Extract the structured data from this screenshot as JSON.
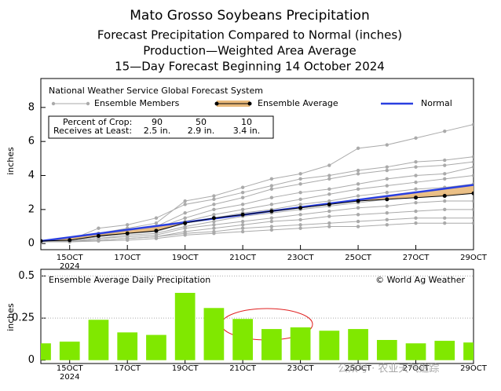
{
  "chart_data": [
    {
      "type": "line",
      "title": "Mato Grosso Soybeans Precipitation",
      "subtitle": [
        "Forecast Precipitation Compared to Normal (inches)",
        "Production—Weighted Area Average",
        "15—Day Forecast Beginning 14 October 2024"
      ],
      "source": "National Weather Service Global Forecast System",
      "ylabel": "inches",
      "x": [
        14,
        15,
        16,
        17,
        18,
        19,
        20,
        21,
        22,
        23,
        24,
        25,
        26,
        27,
        28,
        29
      ],
      "xlim": [
        14,
        29
      ],
      "xticks": [
        {
          "value": 15,
          "label": "15OCT"
        },
        {
          "value": 17,
          "label": "17OCT"
        },
        {
          "value": 19,
          "label": "19OCT"
        },
        {
          "value": 21,
          "label": "21OCT"
        },
        {
          "value": 23,
          "label": "23OCT"
        },
        {
          "value": 25,
          "label": "25OCT"
        },
        {
          "value": 27,
          "label": "27OCT"
        },
        {
          "value": 29,
          "label": "29OCT"
        }
      ],
      "xtick_year": "2024",
      "ylim": [
        -0.36,
        9.7
      ],
      "yticks": [
        0,
        2,
        4,
        6,
        8
      ],
      "series": [
        {
          "name": "Ensemble Members",
          "color": "#aaaaaa",
          "lines": [
            [
              0.1,
              0.25,
              0.6,
              0.9,
              1.2,
              2.5,
              2.8,
              3.3,
              3.8,
              4.1,
              4.6,
              5.6,
              5.8,
              6.2,
              6.6,
              7.0
            ],
            [
              0.1,
              0.2,
              0.9,
              1.1,
              1.5,
              2.3,
              2.6,
              3.0,
              3.4,
              3.8,
              4.0,
              4.3,
              4.5,
              4.8,
              4.9,
              5.1
            ],
            [
              0.1,
              0.2,
              0.5,
              0.8,
              1.0,
              1.8,
              2.3,
              2.7,
              3.2,
              3.5,
              3.8,
              4.1,
              4.3,
              4.5,
              4.6,
              4.8
            ],
            [
              0.1,
              0.2,
              0.5,
              0.7,
              0.9,
              1.5,
              2.0,
              2.3,
              2.7,
              3.0,
              3.2,
              3.5,
              3.8,
              4.0,
              4.1,
              4.5
            ],
            [
              0.1,
              0.2,
              0.4,
              0.6,
              0.8,
              1.3,
              1.7,
              2.0,
              2.3,
              2.6,
              2.9,
              3.2,
              3.4,
              3.6,
              3.8,
              4.0
            ],
            [
              0.1,
              0.2,
              0.4,
              0.6,
              0.7,
              1.2,
              1.5,
              1.8,
              2.0,
              2.3,
              2.5,
              2.8,
              3.0,
              3.2,
              3.3,
              3.5
            ],
            [
              0.1,
              0.15,
              0.3,
              0.5,
              0.6,
              1.0,
              1.3,
              1.6,
              1.8,
              2.0,
              2.2,
              2.4,
              2.6,
              2.8,
              2.9,
              3.0
            ],
            [
              0.1,
              0.15,
              0.3,
              0.4,
              0.5,
              0.9,
              1.1,
              1.3,
              1.5,
              1.7,
              1.9,
              2.1,
              2.2,
              2.4,
              2.5,
              2.5
            ],
            [
              0.1,
              0.15,
              0.2,
              0.3,
              0.4,
              0.7,
              0.9,
              1.1,
              1.3,
              1.4,
              1.6,
              1.7,
              1.8,
              1.9,
              2.0,
              2.0
            ],
            [
              0.1,
              0.1,
              0.2,
              0.3,
              0.4,
              0.6,
              0.7,
              0.9,
              1.0,
              1.1,
              1.2,
              1.3,
              1.4,
              1.5,
              1.5,
              1.5
            ],
            [
              0.1,
              0.1,
              0.15,
              0.2,
              0.3,
              0.5,
              0.6,
              0.7,
              0.8,
              0.9,
              1.0,
              1.0,
              1.1,
              1.2,
              1.2,
              1.2
            ]
          ]
        },
        {
          "name": "Ensemble Average",
          "color": "#000000",
          "band_color": "#e9b97a",
          "values": [
            0.15,
            0.2,
            0.45,
            0.6,
            0.75,
            1.2,
            1.5,
            1.7,
            1.9,
            2.1,
            2.3,
            2.5,
            2.6,
            2.7,
            2.8,
            2.95
          ]
        },
        {
          "name": "Normal",
          "color": "#2a3fe0",
          "values": [
            0.15,
            0.37,
            0.59,
            0.81,
            1.03,
            1.25,
            1.47,
            1.69,
            1.91,
            2.13,
            2.35,
            2.57,
            2.79,
            3.01,
            3.23,
            3.45
          ]
        }
      ],
      "table": {
        "rows": [
          [
            "Percent of Crop:",
            "90",
            "50",
            "10"
          ],
          [
            "Receives at Least:",
            "2.5 in.",
            "2.9 in.",
            "3.4 in."
          ]
        ]
      }
    },
    {
      "type": "bar",
      "title": "Ensemble Average Daily Precipitation",
      "annotation": "© World Ag Weather",
      "ylabel": "inches",
      "x": [
        14,
        15,
        16,
        17,
        18,
        19,
        20,
        21,
        22,
        23,
        24,
        25,
        26,
        27,
        28,
        29
      ],
      "values": [
        0.1,
        0.11,
        0.24,
        0.165,
        0.15,
        0.4,
        0.31,
        0.245,
        0.185,
        0.195,
        0.175,
        0.185,
        0.12,
        0.1,
        0.115,
        0.105
      ],
      "color": "#80e800",
      "xlim": [
        14,
        29
      ],
      "xticks": [
        {
          "value": 15,
          "label": "15OCT"
        },
        {
          "value": 17,
          "label": "17OCT"
        },
        {
          "value": 19,
          "label": "19OCT"
        },
        {
          "value": 21,
          "label": "21OCT"
        },
        {
          "value": 23,
          "label": "23OCT"
        },
        {
          "value": 25,
          "label": "25OCT"
        },
        {
          "value": 27,
          "label": "27OCT"
        },
        {
          "value": 29,
          "label": "29OCT"
        }
      ],
      "xtick_year": "2024",
      "ylim": [
        -0.02,
        0.54
      ],
      "yticks": [
        0,
        0.25,
        0.5
      ],
      "watermark": "公众号 · 农业天气追踪"
    }
  ]
}
